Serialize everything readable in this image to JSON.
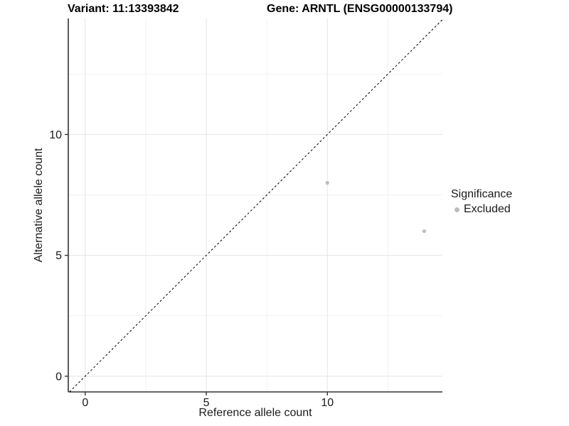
{
  "titles": {
    "variant": "Variant: 11:13393842",
    "gene": "Gene: ARNTL (ENSG00000133794)"
  },
  "axes": {
    "x_label": "Reference allele count",
    "y_label": "Alternative allele count"
  },
  "legend": {
    "title": "Significance",
    "items": [
      {
        "label": "Excluded",
        "color": "#bdbdbd"
      }
    ]
  },
  "colors": {
    "background": "#ffffff",
    "grid_major": "#e4e4e4",
    "grid_minor": "#f1f1f1",
    "axis_line": "#333333",
    "tick_mark": "#333333",
    "axis_text": "#1a1a1a",
    "title_text": "#000000",
    "point": "#bdbdbd",
    "identity_line": "#000000"
  },
  "chart_data": {
    "type": "scatter",
    "title": "Variant: 11:13393842 | Gene: ARNTL (ENSG00000133794)",
    "xlabel": "Reference allele count",
    "ylabel": "Alternative allele count",
    "xlim": [
      -0.7,
      14.75
    ],
    "ylim": [
      -0.65,
      14.8
    ],
    "x_ticks": [
      0,
      5,
      10
    ],
    "y_ticks": [
      0,
      5,
      10
    ],
    "x_tick_labels": [
      "0",
      "5",
      "10"
    ],
    "y_tick_labels": [
      "0",
      "5",
      "10"
    ],
    "x_minor_ticks": [
      2.5,
      7.5,
      12.5
    ],
    "y_minor_ticks": [
      2.5,
      7.5,
      12.5
    ],
    "grid": "on",
    "legend_position": "right",
    "series": [
      {
        "name": "Excluded",
        "color": "#bdbdbd",
        "marker_radius": 2.6,
        "points": [
          {
            "x": 10,
            "y": 8
          },
          {
            "x": 14,
            "y": 6
          }
        ]
      }
    ],
    "reference_line": {
      "type": "identity",
      "style": "dashed",
      "from": [
        -0.65,
        -0.65
      ],
      "to": [
        14.8,
        14.8
      ]
    }
  }
}
